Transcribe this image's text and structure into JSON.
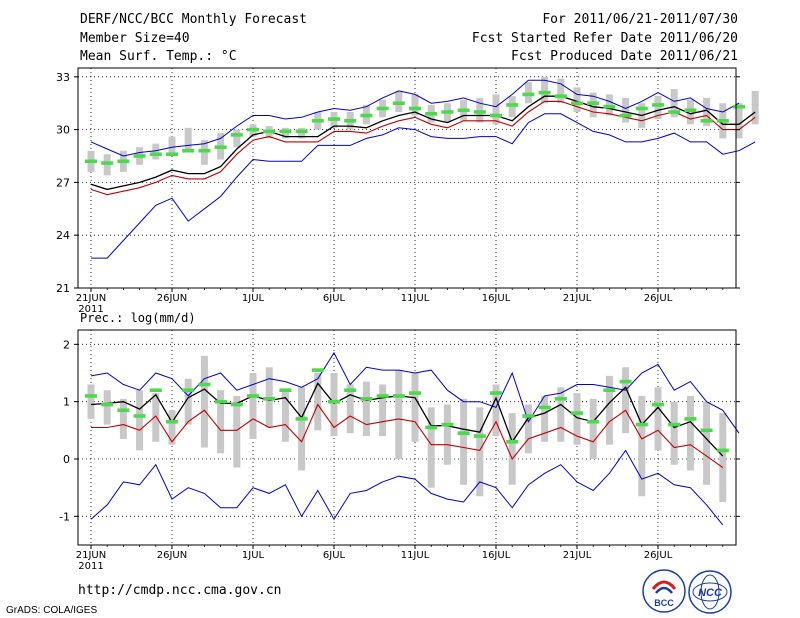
{
  "header": {
    "left": [
      "DERF/NCC/BCC Monthly Forecast",
      "Member Size=40",
      "Mean Surf. Temp.: °C"
    ],
    "right": [
      "For 2011/06/21-2011/07/30",
      "Fcst Started Refer Date 2011/06/20",
      "Fcst Produced Date 2011/06/21"
    ]
  },
  "footer": {
    "url": "http://cmdp.ncc.cma.gov.cn",
    "credit": "GrADS: COLA/IGES"
  },
  "logos": {
    "bcc_text": "BCC",
    "ncc_text": "NCC"
  },
  "colors": {
    "mean": "#000000",
    "median": "#c00000",
    "envelope": "#0000c8",
    "box": "#c8c8c8",
    "ensemble": "#4cd94c"
  },
  "chart_data": [
    {
      "type": "line",
      "title": "Mean Surf. Temp.: °C",
      "x_labels": [
        "21JUN",
        "26JUN",
        "1JUL",
        "6JUL",
        "11JUL",
        "16JUL",
        "21JUL",
        "26JUL"
      ],
      "x_label_days": [
        0,
        5,
        10,
        15,
        20,
        25,
        30,
        35
      ],
      "x_sublabel": "2011",
      "ylim": [
        21,
        33.5
      ],
      "yticks": [
        21,
        24,
        27,
        30,
        33
      ],
      "days": 40,
      "series": [
        {
          "name": "upper",
          "values": [
            29.3,
            28.9,
            28.5,
            28.7,
            28.8,
            29.0,
            29.1,
            29.2,
            29.5,
            30.2,
            30.8,
            30.8,
            30.6,
            30.7,
            31.0,
            31.2,
            31.1,
            31.3,
            31.8,
            32.2,
            32.0,
            31.5,
            31.6,
            31.8,
            31.5,
            31.3,
            32.0,
            32.8,
            32.8,
            32.6,
            32.0,
            31.9,
            31.6,
            31.2,
            31.6,
            32.1,
            31.6,
            31.8,
            31.2,
            31.0,
            31.5
          ]
        },
        {
          "name": "ensemble",
          "values": [
            28.2,
            28.1,
            28.2,
            28.5,
            28.6,
            28.6,
            28.8,
            28.8,
            29.0,
            29.7,
            30.0,
            29.9,
            29.9,
            29.9,
            30.5,
            30.6,
            30.5,
            30.8,
            31.2,
            31.5,
            31.2,
            30.9,
            31.0,
            31.1,
            31.0,
            30.8,
            31.4,
            32.0,
            32.1,
            31.9,
            31.5,
            31.5,
            31.3,
            30.8,
            31.2,
            31.4,
            31.0,
            31.1,
            30.5,
            30.5,
            31.3
          ]
        },
        {
          "name": "mean",
          "values": [
            26.9,
            26.6,
            26.8,
            27.0,
            27.3,
            27.7,
            27.5,
            27.5,
            27.9,
            28.9,
            29.7,
            29.9,
            29.6,
            29.6,
            29.6,
            30.2,
            30.2,
            30.1,
            30.5,
            30.8,
            31.0,
            30.6,
            30.4,
            30.8,
            30.8,
            30.8,
            30.5,
            31.3,
            31.9,
            31.9,
            31.6,
            31.3,
            31.2,
            31.0,
            30.8,
            31.1,
            31.3,
            30.9,
            31.1,
            30.3,
            30.3,
            31.0
          ]
        },
        {
          "name": "median",
          "values": [
            26.6,
            26.3,
            26.5,
            26.7,
            27.0,
            27.4,
            27.2,
            27.2,
            27.6,
            28.6,
            29.4,
            29.6,
            29.3,
            29.3,
            29.3,
            29.9,
            29.9,
            29.8,
            30.2,
            30.5,
            30.7,
            30.3,
            30.1,
            30.5,
            30.5,
            30.5,
            30.2,
            31.0,
            31.6,
            31.6,
            31.3,
            31.0,
            30.9,
            30.7,
            30.5,
            30.8,
            31.0,
            30.6,
            30.8,
            30.0,
            30.0,
            30.7
          ]
        },
        {
          "name": "lower",
          "values": [
            22.7,
            22.7,
            23.7,
            24.7,
            25.7,
            26.1,
            24.8,
            25.5,
            26.2,
            27.3,
            28.3,
            28.2,
            28.2,
            28.2,
            29.1,
            29.1,
            29.1,
            29.5,
            29.7,
            30.1,
            30.0,
            29.6,
            29.5,
            29.5,
            29.6,
            29.6,
            29.2,
            30.4,
            30.9,
            30.9,
            30.4,
            29.9,
            29.7,
            29.3,
            29.3,
            29.5,
            29.8,
            29.3,
            29.3,
            28.6,
            28.8,
            29.3
          ]
        },
        {
          "name": "box_hi",
          "values": [
            28.8,
            28.6,
            28.8,
            29.0,
            29.2,
            29.6,
            30.1,
            29.4,
            29.8,
            30.0,
            30.3,
            30.2,
            30.1,
            30.1,
            31.0,
            31.0,
            31.0,
            31.4,
            31.7,
            32.2,
            32.0,
            31.4,
            31.5,
            31.7,
            31.8,
            32.0,
            31.9,
            32.7,
            33.0,
            32.9,
            32.4,
            32.1,
            32.0,
            31.8,
            31.5,
            31.9,
            32.3,
            31.7,
            31.8,
            31.5,
            31.5,
            32.2
          ]
        },
        {
          "name": "box_lo",
          "values": [
            27.6,
            27.4,
            27.6,
            28.0,
            28.3,
            28.7,
            28.8,
            28.0,
            28.3,
            29.0,
            29.6,
            29.5,
            29.5,
            29.5,
            30.0,
            30.1,
            30.0,
            30.3,
            30.7,
            31.0,
            30.8,
            30.4,
            30.4,
            30.5,
            30.4,
            30.3,
            30.7,
            31.5,
            31.5,
            31.5,
            31.0,
            30.7,
            30.8,
            30.4,
            30.1,
            30.6,
            30.7,
            30.3,
            30.2,
            29.5,
            29.5,
            30.3
          ]
        }
      ]
    },
    {
      "type": "line",
      "title": "Prec.: log(mm/d)",
      "x_labels": [
        "21JUN",
        "26JUN",
        "1JUL",
        "6JUL",
        "11JUL",
        "16JUL",
        "21JUL",
        "26JUL"
      ],
      "x_label_days": [
        0,
        5,
        10,
        15,
        20,
        25,
        30,
        35
      ],
      "x_sublabel": "2011",
      "ylim": [
        -1.5,
        2.25
      ],
      "yticks": [
        -1,
        0,
        1,
        2
      ],
      "days": 40,
      "series": [
        {
          "name": "upper",
          "values": [
            1.45,
            1.5,
            1.3,
            1.2,
            1.5,
            1.4,
            1.1,
            1.4,
            1.5,
            1.2,
            1.3,
            1.4,
            1.35,
            1.25,
            1.4,
            1.85,
            1.3,
            1.6,
            1.55,
            1.55,
            1.5,
            1.55,
            1.2,
            1.0,
            1.0,
            0.9,
            1.5,
            0.65,
            1.1,
            1.15,
            1.3,
            1.3,
            1.25,
            1.2,
            1.5,
            1.65,
            1.2,
            1.35,
            1.0,
            0.85,
            0.45
          ]
        },
        {
          "name": "ensemble",
          "values": [
            1.1,
            0.95,
            0.85,
            0.75,
            1.2,
            0.65,
            1.2,
            1.3,
            1.0,
            0.95,
            1.1,
            1.05,
            1.2,
            0.7,
            1.55,
            1.0,
            1.2,
            1.05,
            1.1,
            1.1,
            1.15,
            0.55,
            0.6,
            0.45,
            0.4,
            1.15,
            0.3,
            0.75,
            0.9,
            1.05,
            0.8,
            0.65,
            1.2,
            1.35,
            0.6,
            0.95,
            0.6,
            0.7,
            0.5,
            0.15
          ]
        },
        {
          "name": "mean",
          "values": [
            0.95,
            0.97,
            1.0,
            0.87,
            1.12,
            0.64,
            1.07,
            1.22,
            0.97,
            0.97,
            1.1,
            1.02,
            1.07,
            0.72,
            1.32,
            0.97,
            1.12,
            1.02,
            1.07,
            1.1,
            1.07,
            0.58,
            0.58,
            0.52,
            0.47,
            1.06,
            0.3,
            0.72,
            0.8,
            0.95,
            0.72,
            0.65,
            0.98,
            1.25,
            0.6,
            0.9,
            0.55,
            0.65,
            0.35,
            0.05
          ]
        },
        {
          "name": "median",
          "values": [
            0.55,
            0.55,
            0.6,
            0.5,
            0.75,
            0.3,
            0.65,
            0.85,
            0.5,
            0.5,
            0.7,
            0.55,
            0.6,
            0.3,
            0.95,
            0.55,
            0.75,
            0.6,
            0.65,
            0.7,
            0.65,
            0.25,
            0.25,
            0.2,
            0.15,
            0.65,
            0.0,
            0.35,
            0.45,
            0.55,
            0.4,
            0.3,
            0.65,
            0.85,
            0.35,
            0.5,
            0.2,
            0.25,
            0.05,
            -0.15
          ]
        },
        {
          "name": "lower",
          "values": [
            -1.05,
            -0.8,
            -0.4,
            -0.45,
            -0.1,
            -0.7,
            -0.5,
            -0.6,
            -0.85,
            -0.85,
            -0.5,
            -0.6,
            -0.45,
            -1.0,
            -0.55,
            -1.05,
            -0.6,
            -0.55,
            -0.4,
            -0.3,
            -0.35,
            -0.6,
            -0.7,
            -0.75,
            -0.4,
            -0.5,
            -0.85,
            -0.45,
            -0.25,
            -0.1,
            -0.4,
            -0.55,
            -0.25,
            0.15,
            -0.35,
            -0.25,
            -0.45,
            -0.5,
            -0.8,
            -1.15
          ]
        },
        {
          "name": "box_hi",
          "values": [
            1.3,
            1.2,
            1.05,
            1.2,
            1.15,
            0.85,
            1.4,
            1.8,
            1.2,
            1.1,
            1.5,
            1.6,
            1.2,
            1.25,
            1.5,
            1.5,
            1.3,
            1.35,
            1.3,
            1.55,
            1.5,
            0.9,
            0.95,
            1.05,
            0.9,
            1.3,
            0.8,
            0.95,
            1.1,
            1.25,
            1.15,
            1.05,
            1.45,
            1.6,
            1.1,
            1.25,
            1.0,
            1.1,
            1.0,
            0.8
          ]
        },
        {
          "name": "box_lo",
          "values": [
            0.7,
            0.6,
            0.35,
            0.15,
            0.3,
            0.25,
            0.6,
            0.2,
            0.1,
            -0.15,
            0.35,
            0.55,
            0.3,
            -0.2,
            0.5,
            0.4,
            0.45,
            0.4,
            0.4,
            0.0,
            0.3,
            -0.5,
            -0.1,
            -0.45,
            -0.65,
            0.4,
            -0.45,
            0.1,
            0.3,
            0.3,
            0.25,
            0.0,
            0.25,
            0.45,
            -0.65,
            0.15,
            -0.1,
            -0.2,
            -0.45,
            -0.75
          ]
        }
      ]
    }
  ]
}
